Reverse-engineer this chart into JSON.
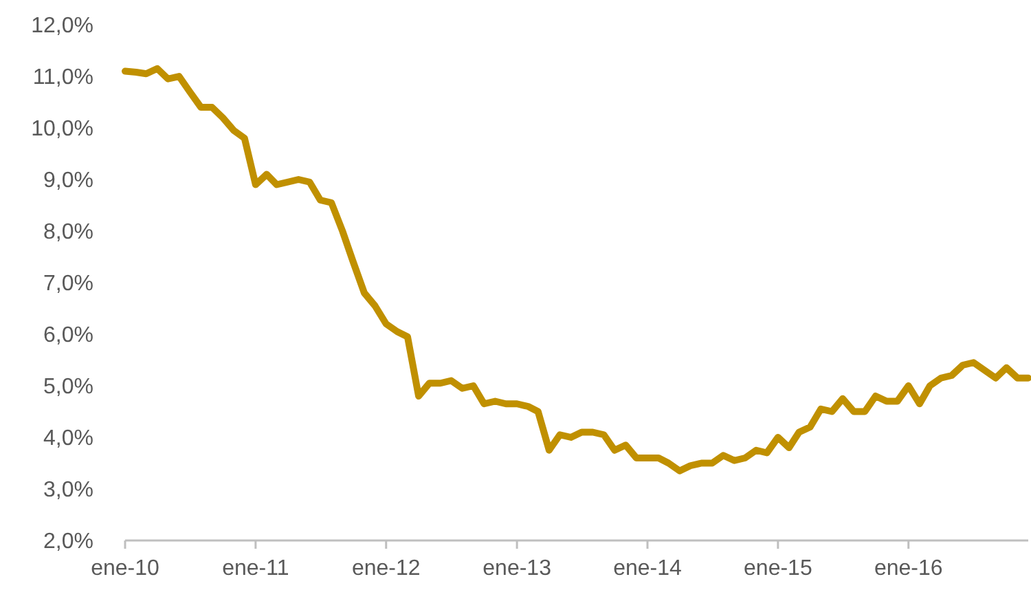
{
  "chart_data": {
    "type": "line",
    "x": [
      "2010-01",
      "2010-02",
      "2010-03",
      "2010-04",
      "2010-05",
      "2010-06",
      "2010-07",
      "2010-08",
      "2010-09",
      "2010-10",
      "2010-11",
      "2010-12",
      "2011-01",
      "2011-02",
      "2011-03",
      "2011-04",
      "2011-05",
      "2011-06",
      "2011-07",
      "2011-08",
      "2011-09",
      "2011-10",
      "2011-11",
      "2011-12",
      "2012-01",
      "2012-02",
      "2012-03",
      "2012-04",
      "2012-05",
      "2012-06",
      "2012-07",
      "2012-08",
      "2012-09",
      "2012-10",
      "2012-11",
      "2012-12",
      "2013-01",
      "2013-02",
      "2013-03",
      "2013-04",
      "2013-05",
      "2013-06",
      "2013-07",
      "2013-08",
      "2013-09",
      "2013-10",
      "2013-11",
      "2013-12",
      "2014-01",
      "2014-02",
      "2014-03",
      "2014-04",
      "2014-05",
      "2014-06",
      "2014-07",
      "2014-08",
      "2014-09",
      "2014-10",
      "2014-11",
      "2014-12",
      "2015-01",
      "2015-02",
      "2015-03",
      "2015-04",
      "2015-05",
      "2015-06",
      "2015-07",
      "2015-08",
      "2015-09",
      "2015-10",
      "2015-11",
      "2015-12",
      "2016-01",
      "2016-02",
      "2016-03",
      "2016-04",
      "2016-05",
      "2016-06",
      "2016-07",
      "2016-08",
      "2016-09",
      "2016-10",
      "2016-11",
      "2016-12"
    ],
    "series": [
      {
        "color": "#c09000",
        "values": [
          11.1,
          11.08,
          11.05,
          11.15,
          10.95,
          11.0,
          10.7,
          10.4,
          10.4,
          10.2,
          9.95,
          9.8,
          8.9,
          9.1,
          8.9,
          8.95,
          9.0,
          8.95,
          8.6,
          8.55,
          8.0,
          7.4,
          6.8,
          6.55,
          6.2,
          6.05,
          5.95,
          4.8,
          5.05,
          5.05,
          5.1,
          4.95,
          5.0,
          4.65,
          4.7,
          4.65,
          4.65,
          4.6,
          4.5,
          3.75,
          4.05,
          4.0,
          4.1,
          4.1,
          4.05,
          3.75,
          3.85,
          3.6,
          3.6,
          3.6,
          3.5,
          3.35,
          3.45,
          3.5,
          3.5,
          3.65,
          3.55,
          3.6,
          3.75,
          3.7,
          4.0,
          3.8,
          4.1,
          4.2,
          4.55,
          4.5,
          4.75,
          4.5,
          4.5,
          4.8,
          4.7,
          4.7,
          5.0,
          4.65,
          5.0,
          5.15,
          5.2,
          5.4,
          5.45,
          5.3,
          5.15,
          5.35,
          5.15,
          5.15
        ]
      }
    ],
    "xlim": [
      "2010-01",
      "2016-12"
    ],
    "xticks": [
      {
        "value": "2010-01",
        "label": "ene-10"
      },
      {
        "value": "2011-01",
        "label": "ene-11"
      },
      {
        "value": "2012-01",
        "label": "ene-12"
      },
      {
        "value": "2013-01",
        "label": "ene-13"
      },
      {
        "value": "2014-01",
        "label": "ene-14"
      },
      {
        "value": "2015-01",
        "label": "ene-15"
      },
      {
        "value": "2016-01",
        "label": "ene-16"
      }
    ],
    "ylim": [
      2,
      12
    ],
    "yticks": [
      {
        "value": 2,
        "label": "2,0%"
      },
      {
        "value": 3,
        "label": "3,0%"
      },
      {
        "value": 4,
        "label": "4,0%"
      },
      {
        "value": 5,
        "label": "5,0%"
      },
      {
        "value": 6,
        "label": "6,0%"
      },
      {
        "value": 7,
        "label": "7,0%"
      },
      {
        "value": 8,
        "label": "8,0%"
      },
      {
        "value": 9,
        "label": "9,0%"
      },
      {
        "value": 10,
        "label": "10,0%"
      },
      {
        "value": 11,
        "label": "11,0%"
      },
      {
        "value": 12,
        "label": "12,0%"
      }
    ],
    "grid": false,
    "marker": "none",
    "line_style": "solid"
  }
}
